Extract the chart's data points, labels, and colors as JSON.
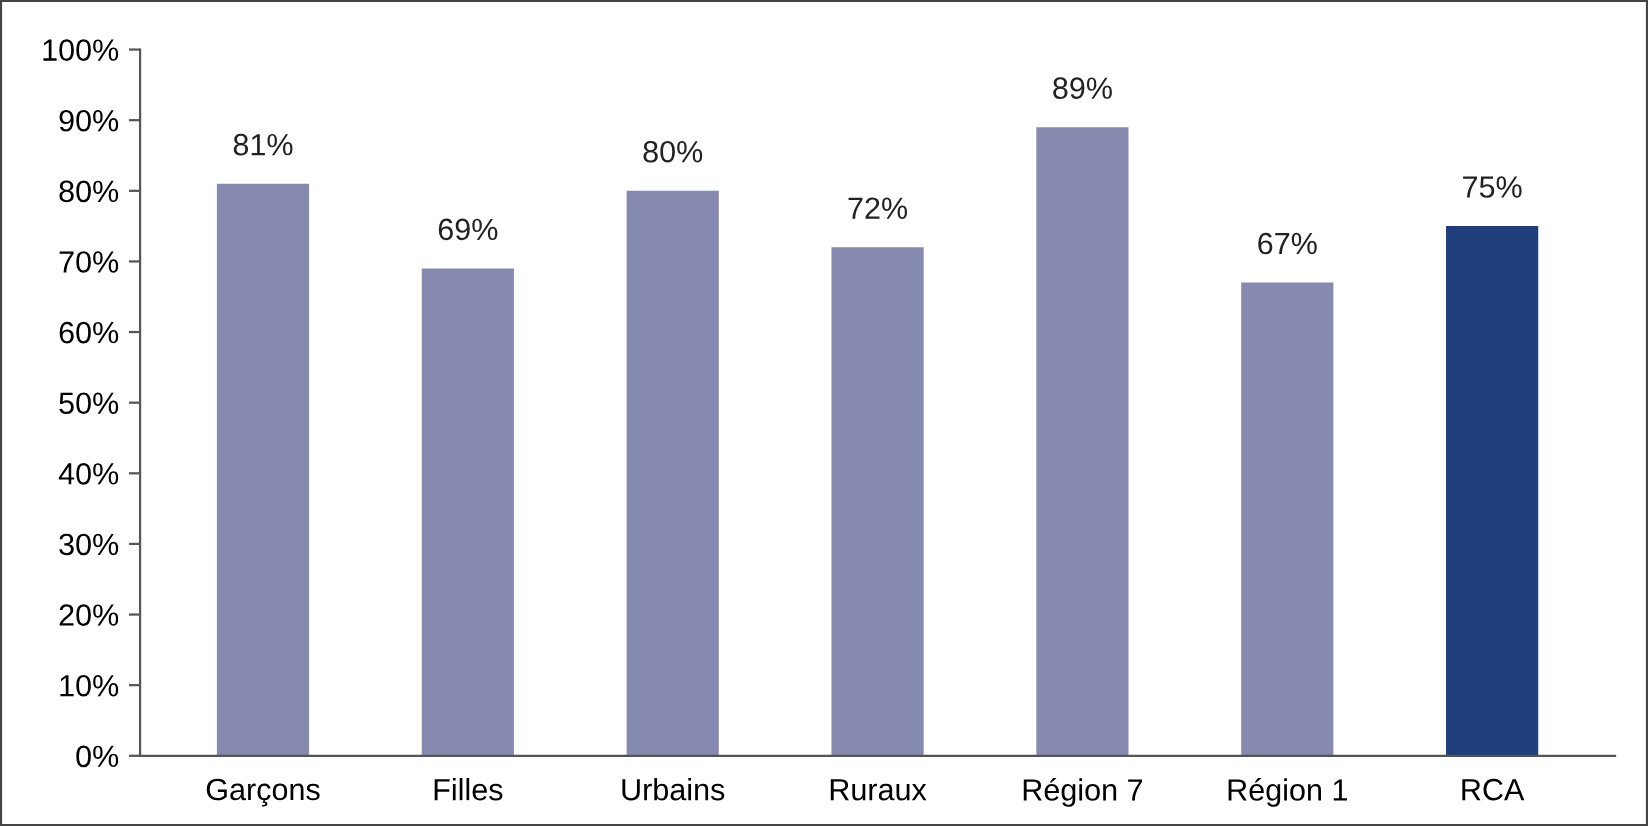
{
  "chart_data": {
    "type": "bar",
    "categories": [
      "Garçons",
      "Filles",
      "Urbains",
      "Ruraux",
      "Région 7",
      "Région 1",
      "RCA"
    ],
    "values": [
      81,
      69,
      80,
      72,
      89,
      67,
      75
    ],
    "colors": [
      "#8689b0",
      "#8689b0",
      "#8689b0",
      "#8689b0",
      "#8689b0",
      "#8689b0",
      "#1f3f7c"
    ],
    "value_labels": [
      "81%",
      "69%",
      "80%",
      "72%",
      "89%",
      "67%",
      "75%"
    ],
    "ylim": [
      0,
      100
    ],
    "yticks": [
      {
        "value": 0,
        "label": "0%"
      },
      {
        "value": 10,
        "label": "10%"
      },
      {
        "value": 20,
        "label": "20%"
      },
      {
        "value": 30,
        "label": "30%"
      },
      {
        "value": 40,
        "label": "40%"
      },
      {
        "value": 50,
        "label": "50%"
      },
      {
        "value": 60,
        "label": "60%"
      },
      {
        "value": 70,
        "label": "70%"
      },
      {
        "value": 80,
        "label": "80%"
      },
      {
        "value": 90,
        "label": "90%"
      },
      {
        "value": 100,
        "label": "100%"
      }
    ],
    "grid": false,
    "legend": false
  }
}
